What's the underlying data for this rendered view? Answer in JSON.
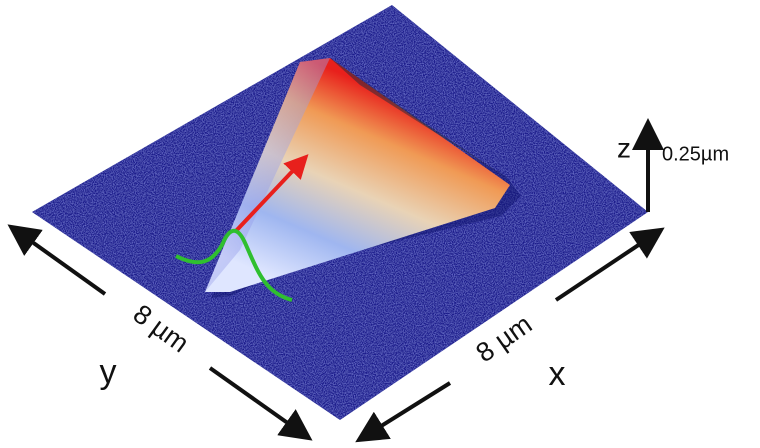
{
  "labels": {
    "z_axis": "z",
    "z_scale": "0.25µm",
    "y_length": "8 µm",
    "y_axis": "y",
    "x_length": "8 µm",
    "x_axis": "x"
  }
}
